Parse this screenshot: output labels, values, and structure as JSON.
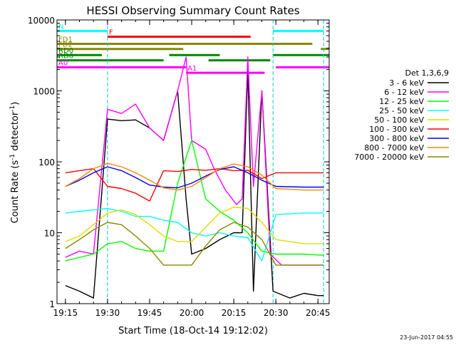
{
  "chart_data": {
    "type": "line",
    "title": "HESSI Observing Summary Count Rates",
    "xlabel": "Start Time (18-Oct-14 19:12:02)",
    "ylabel": "Count Rate (s⁻¹ detector⁻¹)",
    "ylabel_parts": [
      "Count Rate (s",
      "-1",
      " detector",
      "-1",
      ")"
    ],
    "y_scale": "log",
    "ylim": [
      1,
      10000
    ],
    "xlim": [
      "19:12",
      "20:49"
    ],
    "x_ticks": [
      "19:15",
      "19:30",
      "19:45",
      "20:00",
      "20:15",
      "20:30",
      "20:45"
    ],
    "y_ticks": [
      "1",
      "10",
      "100",
      "1000",
      "10000"
    ],
    "legend_title": "Det 1,3,6,9",
    "legend_position": "right",
    "footer_date": "23-Jun-2017 04:55",
    "series": [
      {
        "name": "3 - 6 keV",
        "color": "#000000",
        "x": [
          "19:15",
          "19:20",
          "19:25",
          "19:30",
          "19:35",
          "19:40",
          "19:45",
          "19:50",
          "19:55",
          "19:58",
          "20:00",
          "20:05",
          "20:10",
          "20:15",
          "20:18",
          "20:20",
          "20:22",
          "20:25",
          "20:29",
          "20:35",
          "20:40",
          "20:45",
          "20:47"
        ],
        "y": [
          1.8,
          1.5,
          1.2,
          400,
          380,
          390,
          300,
          200,
          1000,
          30,
          5,
          6,
          8,
          10,
          10,
          2000,
          1.5,
          1000,
          1.5,
          1.2,
          1.4,
          1.3,
          1.3
        ]
      },
      {
        "name": "6 - 12 keV",
        "color": "#ff00ff",
        "x": [
          "19:15",
          "19:20",
          "19:25",
          "19:30",
          "19:35",
          "19:40",
          "19:45",
          "19:50",
          "19:55",
          "19:58",
          "20:00",
          "20:05",
          "20:08",
          "20:12",
          "20:16",
          "20:18",
          "20:20",
          "20:22",
          "20:25",
          "20:28",
          "20:32",
          "20:40",
          "20:47"
        ],
        "y": [
          4.5,
          5.5,
          5,
          550,
          480,
          650,
          300,
          200,
          1000,
          3000,
          200,
          150,
          80,
          40,
          25,
          30,
          3000,
          45,
          1000,
          5,
          3.5,
          3.5,
          3.5
        ]
      },
      {
        "name": "12 - 25 keV",
        "color": "#00ff00",
        "x": [
          "19:15",
          "19:20",
          "19:25",
          "19:30",
          "19:35",
          "19:40",
          "19:45",
          "19:50",
          "19:55",
          "20:00",
          "20:05",
          "20:10",
          "20:15",
          "20:20",
          "20:25",
          "20:30",
          "20:40",
          "20:47"
        ],
        "y": [
          4,
          4.5,
          5,
          7,
          7.5,
          6,
          5.5,
          5.5,
          50,
          200,
          30,
          20,
          15,
          10,
          5.5,
          5,
          5,
          4.8
        ]
      },
      {
        "name": "25 - 50 keV",
        "color": "#00ffff",
        "x": [
          "19:15",
          "19:20",
          "19:25",
          "19:30",
          "19:35",
          "19:40",
          "19:45",
          "19:50",
          "19:55",
          "20:00",
          "20:05",
          "20:10",
          "20:15",
          "20:20",
          "20:25",
          "20:30",
          "20:40",
          "20:47"
        ],
        "y": [
          19,
          20,
          21,
          22,
          20,
          17,
          17,
          15,
          14,
          10,
          9,
          10,
          9,
          8.5,
          4,
          18,
          19,
          19
        ]
      },
      {
        "name": "50 - 100 keV",
        "color": "#dddd00",
        "x": [
          "19:15",
          "19:20",
          "19:25",
          "19:30",
          "19:35",
          "19:40",
          "19:45",
          "19:50",
          "19:55",
          "20:00",
          "20:05",
          "20:10",
          "20:15",
          "20:20",
          "20:25",
          "20:30",
          "20:40",
          "20:47"
        ],
        "y": [
          7.5,
          9,
          13,
          19,
          21,
          18,
          13,
          9,
          7.5,
          7.5,
          12,
          19,
          23,
          22,
          14,
          8,
          7,
          7
        ]
      },
      {
        "name": "100 - 300 keV",
        "color": "#ff0000",
        "x": [
          "19:15",
          "19:20",
          "19:25",
          "19:30",
          "19:35",
          "19:40",
          "19:45",
          "19:50",
          "19:55",
          "20:00",
          "20:05",
          "20:10",
          "20:15",
          "20:20",
          "20:25",
          "20:30",
          "20:40",
          "20:47"
        ],
        "y": [
          70,
          75,
          80,
          45,
          42,
          36,
          28,
          75,
          73,
          78,
          76,
          80,
          75,
          76,
          58,
          70,
          70,
          70
        ]
      },
      {
        "name": "300 - 800 keV",
        "color": "#0000ff",
        "x": [
          "19:15",
          "19:20",
          "19:25",
          "19:30",
          "19:35",
          "19:40",
          "19:45",
          "19:50",
          "19:55",
          "20:00",
          "20:05",
          "20:10",
          "20:15",
          "20:20",
          "20:25",
          "20:30",
          "20:40",
          "20:47"
        ],
        "y": [
          45,
          55,
          70,
          85,
          75,
          60,
          47,
          44,
          43,
          50,
          63,
          78,
          85,
          70,
          55,
          45,
          44,
          44
        ]
      },
      {
        "name": "800 - 7000 keV",
        "color": "#ff8800",
        "x": [
          "19:15",
          "19:20",
          "19:25",
          "19:30",
          "19:35",
          "19:40",
          "19:45",
          "19:50",
          "19:55",
          "20:00",
          "20:05",
          "20:10",
          "20:15",
          "20:20",
          "20:25",
          "20:30",
          "20:40",
          "20:47"
        ],
        "y": [
          45,
          58,
          80,
          95,
          85,
          70,
          55,
          43,
          40,
          45,
          60,
          80,
          93,
          85,
          65,
          42,
          40,
          40
        ]
      },
      {
        "name": "7000 - 20000 keV",
        "color": "#888800",
        "x": [
          "19:15",
          "19:20",
          "19:25",
          "19:30",
          "19:35",
          "19:40",
          "19:45",
          "19:50",
          "19:55",
          "20:00",
          "20:05",
          "20:10",
          "20:15",
          "20:20",
          "20:25",
          "20:30",
          "20:40",
          "20:47"
        ],
        "y": [
          6,
          8,
          11,
          14,
          13,
          9,
          6,
          3.5,
          3.5,
          3.5,
          6.5,
          11,
          14,
          12,
          8,
          3.5,
          3.5,
          3.5
        ]
      }
    ],
    "attitude_flags": [
      {
        "label": "N",
        "color": "#00ffff",
        "y_level": 7000,
        "segments": [
          [
            "19:12",
            "19:30"
          ],
          [
            "20:29",
            "20:47"
          ]
        ]
      },
      {
        "label": "F",
        "color": "#ff0000",
        "y_level": 5800,
        "segments": [
          [
            "19:30",
            "20:21"
          ]
        ]
      },
      {
        "label": "FD1",
        "color": "#888800",
        "y_level": 4600,
        "segments": [
          [
            "19:12",
            "20:43"
          ]
        ]
      },
      {
        "label": "FD2",
        "color": "#888800",
        "y_level": 3900,
        "segments": [
          [
            "19:12",
            "19:57"
          ],
          [
            "20:46",
            "20:49"
          ]
        ]
      },
      {
        "label": "RD0",
        "color": "#008800",
        "y_level": 3200,
        "segments": [
          [
            "19:12",
            "19:28"
          ],
          [
            "19:52",
            "20:10"
          ],
          [
            "20:29",
            "20:49"
          ]
        ]
      },
      {
        "label": "RD6",
        "color": "#008800",
        "y_level": 2700,
        "segments": [
          [
            "19:12",
            "19:50"
          ],
          [
            "20:06",
            "20:28"
          ]
        ]
      },
      {
        "label": "A0",
        "color": "#ff00ff",
        "y_level": 2150,
        "segments": [
          [
            "19:12",
            "19:58"
          ],
          [
            "20:30",
            "20:49"
          ]
        ]
      },
      {
        "label": "A1",
        "color": "#ff00ff",
        "y_level": 1800,
        "segments": [
          [
            "19:58",
            "20:26"
          ]
        ]
      }
    ]
  }
}
